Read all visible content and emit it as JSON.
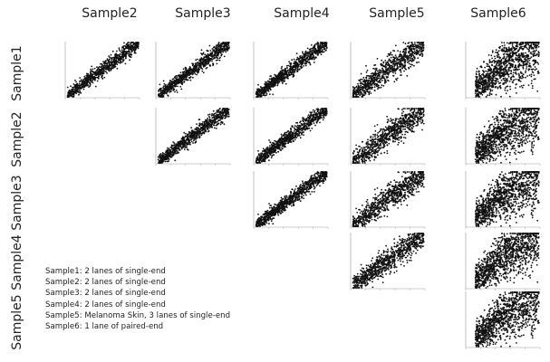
{
  "chart_data": {
    "type": "scatter",
    "layout": "upper-triangular pairwise scatter matrix",
    "columns": [
      "Sample2",
      "Sample3",
      "Sample4",
      "Sample5",
      "Sample6"
    ],
    "rows": [
      "Sample1",
      "Sample2",
      "Sample3",
      "Sample4",
      "Sample5"
    ],
    "panels": [
      {
        "row": "Sample1",
        "col": "Sample2",
        "spread": "narrow"
      },
      {
        "row": "Sample1",
        "col": "Sample3",
        "spread": "narrow"
      },
      {
        "row": "Sample1",
        "col": "Sample4",
        "spread": "narrow"
      },
      {
        "row": "Sample1",
        "col": "Sample5",
        "spread": "medium"
      },
      {
        "row": "Sample1",
        "col": "Sample6",
        "spread": "wide"
      },
      {
        "row": "Sample2",
        "col": "Sample3",
        "spread": "narrow"
      },
      {
        "row": "Sample2",
        "col": "Sample4",
        "spread": "narrow"
      },
      {
        "row": "Sample2",
        "col": "Sample5",
        "spread": "medium"
      },
      {
        "row": "Sample2",
        "col": "Sample6",
        "spread": "wide"
      },
      {
        "row": "Sample3",
        "col": "Sample4",
        "spread": "narrow"
      },
      {
        "row": "Sample3",
        "col": "Sample5",
        "spread": "medium"
      },
      {
        "row": "Sample3",
        "col": "Sample6",
        "spread": "wide"
      },
      {
        "row": "Sample4",
        "col": "Sample5",
        "spread": "medium"
      },
      {
        "row": "Sample4",
        "col": "Sample6",
        "spread": "wide"
      },
      {
        "row": "Sample5",
        "col": "Sample6",
        "spread": "wide"
      }
    ],
    "point_color": "#111111",
    "annotations": [
      "Sample1: 2 lanes of single-end",
      "Sample2: 2 lanes of single-end",
      "Sample3: 2 lanes of single-end",
      "Sample4: 2 lanes of single-end",
      "Sample5: Melanoma Skin, 3 lanes of single-end",
      "Sample6: 1 lane of paired-end"
    ]
  }
}
